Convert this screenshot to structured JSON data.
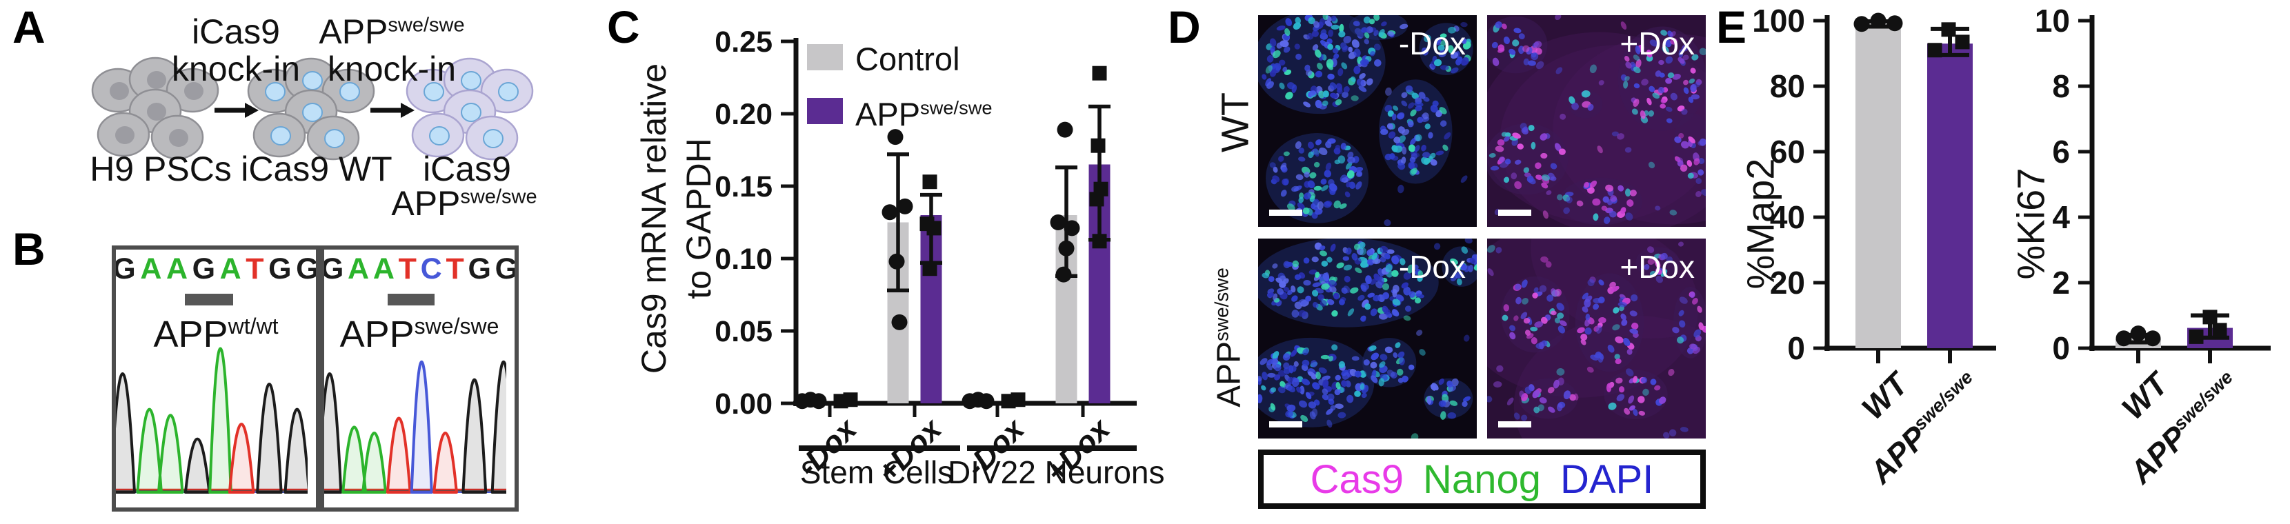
{
  "panels": {
    "a": {
      "label": "A",
      "step1": {
        "line1": "iCas9",
        "line2": "knock-in"
      },
      "step2": {
        "base": "APP",
        "sup": "swe/swe",
        "line2": "knock-in"
      },
      "clusters": [
        {
          "caption": "H9 PSCs",
          "body": "#bababd",
          "body_stroke": "#8f8f94",
          "nucleus": "#9c9ca2",
          "nucleus_stroke": "none"
        },
        {
          "caption": "iCas9 WT",
          "body": "#bababd",
          "body_stroke": "#8f8f94",
          "nucleus": "#bfe0f8",
          "nucleus_stroke": "#6ba6d6"
        },
        {
          "caption_line1": "iCas9",
          "caption_base": "APP",
          "caption_sup": "swe/swe",
          "body": "#d9d6ec",
          "body_stroke": "#aaa4d0",
          "nucleus": "#bfe0f8",
          "nucleus_stroke": "#6ba6d6"
        }
      ]
    },
    "b": {
      "label": "B",
      "trace_colors": {
        "black": "#1c1c1c",
        "green": "#2cb42c",
        "red": "#e23128",
        "blue": "#4758d8"
      },
      "boxes": [
        {
          "label_base": "APP",
          "label_sup": "wt/wt",
          "letters": [
            {
              "ch": "G",
              "c": "#1c1c1c"
            },
            {
              "ch": "A",
              "c": "#2cb42c"
            },
            {
              "ch": "A",
              "c": "#2cb42c"
            },
            {
              "ch": "G",
              "c": "#1c1c1c"
            },
            {
              "ch": "A",
              "c": "#2cb42c"
            },
            {
              "ch": "T",
              "c": "#e23128"
            },
            {
              "ch": "G",
              "c": "#1c1c1c"
            },
            {
              "ch": "G",
              "c": "#1c1c1c"
            }
          ],
          "peaks": [
            {
              "x": 0.035,
              "h": 0.8,
              "c": "black"
            },
            {
              "x": 0.175,
              "h": 0.56,
              "c": "green"
            },
            {
              "x": 0.285,
              "h": 0.52,
              "c": "green"
            },
            {
              "x": 0.425,
              "h": 0.36,
              "c": "black"
            },
            {
              "x": 0.545,
              "h": 0.97,
              "c": "green",
              "w": 0.055
            },
            {
              "x": 0.655,
              "h": 0.46,
              "c": "red"
            },
            {
              "x": 0.8,
              "h": 0.73,
              "c": "black"
            },
            {
              "x": 0.945,
              "h": 0.56,
              "c": "black"
            }
          ],
          "underbar_left": 100,
          "underbar_w": 70
        },
        {
          "label_base": "APP",
          "label_sup": "swe/swe",
          "letters": [
            {
              "ch": "G",
              "c": "#1c1c1c"
            },
            {
              "ch": "A",
              "c": "#2cb42c"
            },
            {
              "ch": "A",
              "c": "#2cb42c"
            },
            {
              "ch": "T",
              "c": "#e23128"
            },
            {
              "ch": "C",
              "c": "#4758d8"
            },
            {
              "ch": "T",
              "c": "#e23128"
            },
            {
              "ch": "G",
              "c": "#1c1c1c"
            },
            {
              "ch": "G",
              "c": "#1c1c1c"
            }
          ],
          "peaks": [
            {
              "x": 0.03,
              "h": 0.8,
              "c": "black"
            },
            {
              "x": 0.165,
              "h": 0.44,
              "c": "green"
            },
            {
              "x": 0.275,
              "h": 0.4,
              "c": "green"
            },
            {
              "x": 0.41,
              "h": 0.5,
              "c": "red"
            },
            {
              "x": 0.535,
              "h": 0.88,
              "c": "blue",
              "w": 0.055
            },
            {
              "x": 0.665,
              "h": 0.4,
              "c": "red"
            },
            {
              "x": 0.825,
              "h": 0.76,
              "c": "black"
            },
            {
              "x": 0.985,
              "h": 0.88,
              "c": "black"
            }
          ],
          "underbar_left": 92,
          "underbar_w": 68
        }
      ]
    },
    "c": {
      "label": "C"
    },
    "d": {
      "label": "D",
      "row_labels": [
        {
          "base": "WT"
        },
        {
          "base": "APP",
          "sup": "swe/swe"
        }
      ],
      "images": [
        {
          "label": "-Dox",
          "bg": "#0b0712",
          "wash": "",
          "glow": "#1e2a6a",
          "density": 2200,
          "seed": 7,
          "stray": 10,
          "palette": [
            "#2e3ecf",
            "#3a49dc",
            "#4757e4",
            "#2bb6ce",
            "#39d8b2",
            "#2a31b8",
            "#5d6aec"
          ],
          "colonies": [
            [
              0.28,
              0.22,
              0.27,
              0.22
            ],
            [
              0.72,
              0.55,
              0.15,
              0.22
            ],
            [
              0.27,
              0.77,
              0.21,
              0.19
            ],
            [
              0.86,
              0.16,
              0.11,
              0.11
            ],
            [
              0.55,
              0.05,
              0.12,
              0.06
            ]
          ]
        },
        {
          "label": "+Dox",
          "bg": "#2c1038",
          "wash": "#47195a",
          "glow": "#3c1a55",
          "density": 1500,
          "seed": 11,
          "stray": 40,
          "palette": [
            "#4246d6",
            "#5748da",
            "#c73fd2",
            "#de52de",
            "#38b8c8",
            "#4246d6",
            "#8a44d8"
          ],
          "colonies": [
            [
              0.13,
              0.14,
              0.13,
              0.12
            ],
            [
              0.8,
              0.3,
              0.18,
              0.22
            ],
            [
              0.18,
              0.68,
              0.17,
              0.15
            ],
            [
              0.52,
              0.88,
              0.17,
              0.1
            ],
            [
              0.94,
              0.62,
              0.08,
              0.14
            ],
            [
              0.45,
              0.42,
              0.07,
              0.06
            ]
          ]
        },
        {
          "label": "-Dox",
          "bg": "#0b0712",
          "wash": "",
          "glow": "#1e2a6a",
          "density": 2200,
          "seed": 23,
          "stray": 12,
          "palette": [
            "#2e3ecf",
            "#3a49dc",
            "#4757e4",
            "#2bb6ce",
            "#39d8b2",
            "#2a31b8",
            "#5d6aec"
          ],
          "colonies": [
            [
              0.4,
              0.22,
              0.38,
              0.2
            ],
            [
              0.24,
              0.72,
              0.26,
              0.2
            ],
            [
              0.6,
              0.62,
              0.11,
              0.11
            ],
            [
              0.87,
              0.8,
              0.1,
              0.09
            ],
            [
              0.93,
              0.14,
              0.08,
              0.09
            ]
          ]
        },
        {
          "label": "+Dox",
          "bg": "#2a1036",
          "wash": "#45185a",
          "glow": "#3c1a55",
          "density": 1500,
          "seed": 31,
          "stray": 36,
          "palette": [
            "#4246d6",
            "#5748da",
            "#c73fd2",
            "#de52de",
            "#38b8c8",
            "#4246d6",
            "#8a44d8"
          ],
          "colonies": [
            [
              0.22,
              0.38,
              0.14,
              0.17
            ],
            [
              0.56,
              0.42,
              0.14,
              0.22
            ],
            [
              0.68,
              0.78,
              0.13,
              0.11
            ],
            [
              0.28,
              0.8,
              0.12,
              0.09
            ],
            [
              0.93,
              0.42,
              0.07,
              0.16
            ],
            [
              0.78,
              0.12,
              0.09,
              0.07
            ]
          ]
        }
      ],
      "legend": [
        {
          "text": "Cas9",
          "color": "#e83ae8"
        },
        {
          "text": "Nanog",
          "color": "#2eb82e"
        },
        {
          "text": "DAPI",
          "color": "#2424cf"
        }
      ]
    },
    "e": {
      "label": "E"
    }
  },
  "chart_data": [
    {
      "id": "cas9-mrna",
      "type": "bar",
      "ylabel_line1": "Cas9 mRNA relative",
      "ylabel_line2": "to GAPDH",
      "ylim": [
        0,
        0.25
      ],
      "yticks": [
        "0.00",
        "0.05",
        "0.10",
        "0.15",
        "0.20",
        "0.25"
      ],
      "categories": [
        "-Dox",
        "+Dox",
        "-Dox",
        "+Dox"
      ],
      "group_sections": [
        {
          "label": "Stem Cells"
        },
        {
          "label": "DIV22 Neurons"
        }
      ],
      "legend_position": "upper-left",
      "grid": false,
      "series": [
        {
          "name": "Control",
          "color": "#c7c6c8",
          "marker": "circle",
          "values": [
            0,
            0.125,
            0,
            0.13
          ],
          "err_lo": [
            0,
            0.047,
            0,
            0.042
          ],
          "err_hi": [
            0,
            0.047,
            0,
            0.033
          ],
          "points": [
            [
              [
                -16,
                0.002
              ],
              [
                -4,
                0.003
              ],
              [
                8,
                0.002
              ]
            ],
            [
              [
                -4,
                0.184
              ],
              [
                10,
                0.136
              ],
              [
                -12,
                0.132
              ],
              [
                -2,
                0.098
              ],
              [
                2,
                0.056
              ]
            ],
            [
              [
                -16,
                0.002
              ],
              [
                -4,
                0.003
              ],
              [
                8,
                0.002
              ]
            ],
            [
              [
                -2,
                0.189
              ],
              [
                -12,
                0.125
              ],
              [
                8,
                0.121
              ],
              [
                0,
                0.107
              ],
              [
                -4,
                0.089
              ]
            ]
          ]
        },
        {
          "name_base": "APP",
          "name_sup": "swe/swe",
          "color": "#5b2c92",
          "marker": "square",
          "values": [
            0,
            0.13,
            0,
            0.165
          ],
          "err_lo": [
            0,
            0.033,
            0,
            0.052
          ],
          "err_hi": [
            0,
            0.014,
            0,
            0.04
          ],
          "points": [
            [
              [
                -8,
                0.002
              ],
              [
                6,
                0.003
              ]
            ],
            [
              [
                -2,
                0.153
              ],
              [
                -6,
                0.124
              ],
              [
                4,
                0.121
              ],
              [
                -2,
                0.093
              ]
            ],
            [
              [
                -8,
                0.002
              ],
              [
                6,
                0.003
              ]
            ],
            [
              [
                0,
                0.228
              ],
              [
                -2,
                0.178
              ],
              [
                2,
                0.148
              ],
              [
                -4,
                0.141
              ],
              [
                0,
                0.112
              ]
            ]
          ]
        }
      ]
    },
    {
      "id": "map2",
      "type": "bar",
      "ylabel": "%Map2",
      "ylim": [
        0,
        100
      ],
      "yticks": [
        0,
        20,
        40,
        60,
        80,
        100
      ],
      "categories": [
        {
          "base": "WT"
        },
        {
          "base": "APP",
          "sup": "swe/swe"
        }
      ],
      "bars": [
        {
          "name": "WT",
          "color": "#c7c6c8",
          "marker": "circle",
          "value": 99,
          "err_lo": 0.8,
          "err_hi": 0.8,
          "points": [
            [
              -24,
              99
            ],
            [
              0,
              100
            ],
            [
              24,
              99.2
            ]
          ]
        },
        {
          "name": "APPswe/swe",
          "color": "#5b2c92",
          "marker": "square",
          "value": 93,
          "err_lo": 3.5,
          "err_hi": 4.5,
          "points": [
            [
              -22,
              91
            ],
            [
              18,
              93.5
            ],
            [
              -2,
              97.3
            ]
          ]
        }
      ]
    },
    {
      "id": "ki67",
      "type": "bar",
      "ylabel": "%Ki67",
      "ylim": [
        0,
        10
      ],
      "yticks": [
        0,
        2,
        4,
        6,
        8,
        10
      ],
      "categories": [
        {
          "base": "WT"
        },
        {
          "base": "APP",
          "sup": "swe/swe"
        }
      ],
      "bars": [
        {
          "name": "WT",
          "color": "#c7c6c8",
          "marker": "circle",
          "value": 0.28,
          "err_lo": 0.1,
          "err_hi": 0.12,
          "points": [
            [
              -21,
              0.3
            ],
            [
              0,
              0.45
            ],
            [
              21,
              0.3
            ]
          ]
        },
        {
          "name": "APPswe/swe",
          "color": "#5b2c92",
          "marker": "square",
          "value": 0.62,
          "err_lo": 0.3,
          "err_hi": 0.38,
          "points": [
            [
              -20,
              0.35
            ],
            [
              14,
              0.55
            ],
            [
              0,
              0.95
            ]
          ]
        }
      ]
    }
  ]
}
